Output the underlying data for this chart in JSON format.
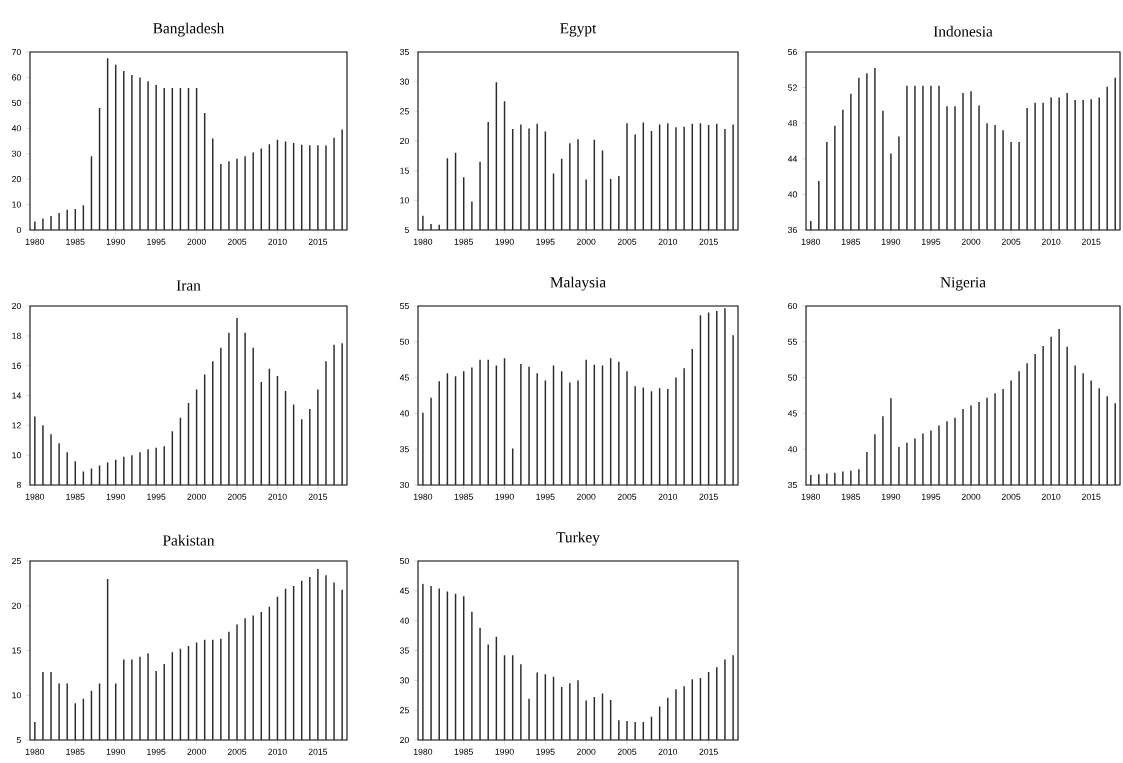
{
  "chart_data": [
    {
      "type": "bar",
      "title": "Bangladesh",
      "color": "#2b2b2b",
      "xlim": [
        1979.4,
        2018.6
      ],
      "ylim": [
        0,
        70
      ],
      "xticks": [
        1980,
        1985,
        1990,
        1995,
        2000,
        2005,
        2010,
        2015
      ],
      "yticks": [
        0,
        10,
        20,
        30,
        40,
        50,
        60,
        70
      ],
      "x": [
        1980,
        1981,
        1982,
        1983,
        1984,
        1985,
        1986,
        1987,
        1988,
        1989,
        1990,
        1991,
        1992,
        1993,
        1994,
        1995,
        1996,
        1997,
        1998,
        1999,
        2000,
        2001,
        2002,
        2003,
        2004,
        2005,
        2006,
        2007,
        2008,
        2009,
        2010,
        2011,
        2012,
        2013,
        2014,
        2015,
        2016,
        2017,
        2018
      ],
      "values": [
        3.3,
        4.5,
        5.5,
        6.7,
        8,
        8.3,
        9.7,
        29,
        48,
        67.5,
        65,
        62.5,
        61,
        60,
        58.5,
        57,
        55.8,
        55.8,
        55.8,
        55.8,
        55.8,
        46,
        36,
        26,
        27,
        28,
        29,
        30.5,
        32,
        33.7,
        35.5,
        34.8,
        34.2,
        33.5,
        33.3,
        33.3,
        33.2,
        36.3,
        39.5
      ]
    },
    {
      "type": "bar",
      "title": "Egypt",
      "color": "#2b2b2b",
      "xlim": [
        1979.4,
        2018.6
      ],
      "ylim": [
        5,
        35
      ],
      "xticks": [
        1980,
        1985,
        1990,
        1995,
        2000,
        2005,
        2010,
        2015
      ],
      "yticks": [
        5,
        10,
        15,
        20,
        25,
        30,
        35
      ],
      "x": [
        1980,
        1981,
        1982,
        1983,
        1984,
        1985,
        1986,
        1987,
        1988,
        1989,
        1990,
        1991,
        1992,
        1993,
        1994,
        1995,
        1996,
        1997,
        1998,
        1999,
        2000,
        2001,
        2002,
        2003,
        2004,
        2005,
        2006,
        2007,
        2008,
        2009,
        2010,
        2011,
        2012,
        2013,
        2014,
        2015,
        2016,
        2017,
        2018
      ],
      "values": [
        7.4,
        6,
        5.9,
        17.1,
        18,
        13.9,
        9.8,
        16.5,
        23.2,
        29.9,
        26.7,
        22,
        22.8,
        22.1,
        22.9,
        21.6,
        14.5,
        17,
        19.6,
        20.3,
        13.5,
        20.2,
        18.4,
        13.6,
        14.1,
        23,
        21.1,
        23.1,
        21.7,
        22.8,
        23,
        22.3,
        22.4,
        22.9,
        23,
        22.7,
        22.9,
        22,
        22.8
      ]
    },
    {
      "type": "bar",
      "title": "Indonesia",
      "color": "#2b2b2b",
      "xlim": [
        1979.4,
        2018.6
      ],
      "ylim": [
        36,
        56
      ],
      "xticks": [
        1980,
        1985,
        1990,
        1995,
        2000,
        2005,
        2010,
        2015
      ],
      "yticks": [
        36,
        40,
        44,
        48,
        52,
        56
      ],
      "x": [
        1980,
        1981,
        1982,
        1983,
        1984,
        1985,
        1986,
        1987,
        1988,
        1989,
        1990,
        1991,
        1992,
        1993,
        1994,
        1995,
        1996,
        1997,
        1998,
        1999,
        2000,
        2001,
        2002,
        2003,
        2004,
        2005,
        2006,
        2007,
        2008,
        2009,
        2010,
        2011,
        2012,
        2013,
        2014,
        2015,
        2016,
        2017,
        2018
      ],
      "values": [
        37,
        41.5,
        45.9,
        47.7,
        49.5,
        51.3,
        53.1,
        53.6,
        54.2,
        49.4,
        44.6,
        46.5,
        52.2,
        52.2,
        52.2,
        52.2,
        52.2,
        49.9,
        49.9,
        51.4,
        51.6,
        50,
        48,
        47.8,
        47.2,
        45.9,
        45.9,
        49.7,
        50.3,
        50.3,
        50.9,
        50.9,
        51.4,
        50.6,
        50.6,
        50.7,
        50.9,
        52.1,
        53.1
      ]
    },
    {
      "type": "bar",
      "title": "Iran",
      "color": "#2b2b2b",
      "xlim": [
        1979.4,
        2018.6
      ],
      "ylim": [
        8,
        20
      ],
      "xticks": [
        1980,
        1985,
        1990,
        1995,
        2000,
        2005,
        2010,
        2015
      ],
      "yticks": [
        8,
        10,
        12,
        14,
        16,
        18,
        20
      ],
      "x": [
        1980,
        1981,
        1982,
        1983,
        1984,
        1985,
        1986,
        1987,
        1988,
        1989,
        1990,
        1991,
        1992,
        1993,
        1994,
        1995,
        1996,
        1997,
        1998,
        1999,
        2000,
        2001,
        2002,
        2003,
        2004,
        2005,
        2006,
        2007,
        2008,
        2009,
        2010,
        2011,
        2012,
        2013,
        2014,
        2015,
        2016,
        2017,
        2018
      ],
      "values": [
        12.6,
        12,
        11.4,
        10.8,
        10.2,
        9.6,
        8.9,
        9.1,
        9.3,
        9.5,
        9.7,
        9.9,
        10,
        10.2,
        10.4,
        10.5,
        10.6,
        11.6,
        12.5,
        13.5,
        14.4,
        15.4,
        16.3,
        17.2,
        18.2,
        19.2,
        18.2,
        17.2,
        14.9,
        15.8,
        15.3,
        14.3,
        13.4,
        12.4,
        13.1,
        14.4,
        16.3,
        17.4,
        17.5
      ]
    },
    {
      "type": "bar",
      "title": "Malaysia",
      "color": "#2b2b2b",
      "xlim": [
        1979.4,
        2018.6
      ],
      "ylim": [
        30,
        55
      ],
      "xticks": [
        1980,
        1985,
        1990,
        1995,
        2000,
        2005,
        2010,
        2015
      ],
      "yticks": [
        30,
        35,
        40,
        45,
        50,
        55
      ],
      "x": [
        1980,
        1981,
        1982,
        1983,
        1984,
        1985,
        1986,
        1987,
        1988,
        1989,
        1990,
        1991,
        1992,
        1993,
        1994,
        1995,
        1996,
        1997,
        1998,
        1999,
        2000,
        2001,
        2002,
        2003,
        2004,
        2005,
        2006,
        2007,
        2008,
        2009,
        2010,
        2011,
        2012,
        2013,
        2014,
        2015,
        2016,
        2017,
        2018
      ],
      "values": [
        40.1,
        42.2,
        44.5,
        45.6,
        45.2,
        45.9,
        46.4,
        47.5,
        47.5,
        46.7,
        47.7,
        35.1,
        46.9,
        46.5,
        45.6,
        44.6,
        46.7,
        45.9,
        44.3,
        44.6,
        47.5,
        46.8,
        46.7,
        47.7,
        47.2,
        45.9,
        43.8,
        43.6,
        43.1,
        43.5,
        43.4,
        45,
        46.3,
        49,
        53.7,
        54.1,
        54.3,
        54.7,
        50.9
      ]
    },
    {
      "type": "bar",
      "title": "Nigeria",
      "color": "#2b2b2b",
      "xlim": [
        1979.4,
        2018.6
      ],
      "ylim": [
        35,
        60
      ],
      "xticks": [
        1980,
        1985,
        1990,
        1995,
        2000,
        2005,
        2010,
        2015
      ],
      "yticks": [
        35,
        40,
        45,
        50,
        55,
        60
      ],
      "x": [
        1980,
        1981,
        1982,
        1983,
        1984,
        1985,
        1986,
        1987,
        1988,
        1989,
        1990,
        1991,
        1992,
        1993,
        1994,
        1995,
        1996,
        1997,
        1998,
        1999,
        2000,
        2001,
        2002,
        2003,
        2004,
        2005,
        2006,
        2007,
        2008,
        2009,
        2010,
        2011,
        2012,
        2013,
        2014,
        2015,
        2016,
        2017,
        2018
      ],
      "values": [
        36.4,
        36.5,
        36.6,
        36.7,
        36.9,
        37,
        37.2,
        39.6,
        42.1,
        44.6,
        47.1,
        40.3,
        40.9,
        41.5,
        42.2,
        42.6,
        43.3,
        43.9,
        44.4,
        45.6,
        46.1,
        46.6,
        47.2,
        47.8,
        48.4,
        49.6,
        50.9,
        52,
        53.3,
        54.4,
        55.7,
        56.8,
        54.3,
        51.7,
        50.6,
        49.6,
        48.5,
        47.4,
        46.4
      ]
    },
    {
      "type": "bar",
      "title": "Pakistan",
      "color": "#2b2b2b",
      "xlim": [
        1979.4,
        2018.6
      ],
      "ylim": [
        5,
        25
      ],
      "xticks": [
        1980,
        1985,
        1990,
        1995,
        2000,
        2005,
        2010,
        2015
      ],
      "yticks": [
        5,
        10,
        15,
        20,
        25
      ],
      "x": [
        1980,
        1981,
        1982,
        1983,
        1984,
        1985,
        1986,
        1987,
        1988,
        1989,
        1990,
        1991,
        1992,
        1993,
        1994,
        1995,
        1996,
        1997,
        1998,
        1999,
        2000,
        2001,
        2002,
        2003,
        2004,
        2005,
        2006,
        2007,
        2008,
        2009,
        2010,
        2011,
        2012,
        2013,
        2014,
        2015,
        2016,
        2017,
        2018
      ],
      "values": [
        7,
        12.6,
        12.6,
        11.3,
        11.3,
        9.1,
        9.6,
        10.5,
        11.3,
        23,
        11.3,
        14,
        14,
        14.3,
        14.7,
        12.7,
        13.5,
        14.8,
        15.2,
        15.5,
        15.9,
        16.2,
        16.2,
        16.3,
        17.1,
        17.9,
        18.6,
        18.9,
        19.3,
        19.9,
        21,
        21.9,
        22.2,
        22.8,
        23.2,
        24.1,
        23.4,
        22.6,
        21.8
      ]
    },
    {
      "type": "bar",
      "title": "Turkey",
      "color": "#2b2b2b",
      "xlim": [
        1979.4,
        2018.6
      ],
      "ylim": [
        20,
        50
      ],
      "xticks": [
        1980,
        1985,
        1990,
        1995,
        2000,
        2005,
        2010,
        2015
      ],
      "yticks": [
        20,
        25,
        30,
        35,
        40,
        45,
        50
      ],
      "x": [
        1980,
        1981,
        1982,
        1983,
        1984,
        1985,
        1986,
        1987,
        1988,
        1989,
        1990,
        1991,
        1992,
        1993,
        1994,
        1995,
        1996,
        1997,
        1998,
        1999,
        2000,
        2001,
        2002,
        2003,
        2004,
        2005,
        2006,
        2007,
        2008,
        2009,
        2010,
        2011,
        2012,
        2013,
        2014,
        2015,
        2016,
        2017,
        2018
      ],
      "values": [
        46.2,
        45.8,
        45.4,
        44.9,
        44.5,
        44.1,
        41.5,
        38.8,
        36,
        37.3,
        34.2,
        34.2,
        32.7,
        26.9,
        31.3,
        31,
        30.6,
        28.9,
        29.5,
        30,
        26.6,
        27.2,
        27.8,
        26.7,
        23.3,
        23.2,
        23,
        23,
        23.9,
        25.6,
        27.1,
        28.5,
        29,
        30.2,
        30.4,
        31.4,
        32.2,
        33.5,
        34.2
      ]
    }
  ]
}
